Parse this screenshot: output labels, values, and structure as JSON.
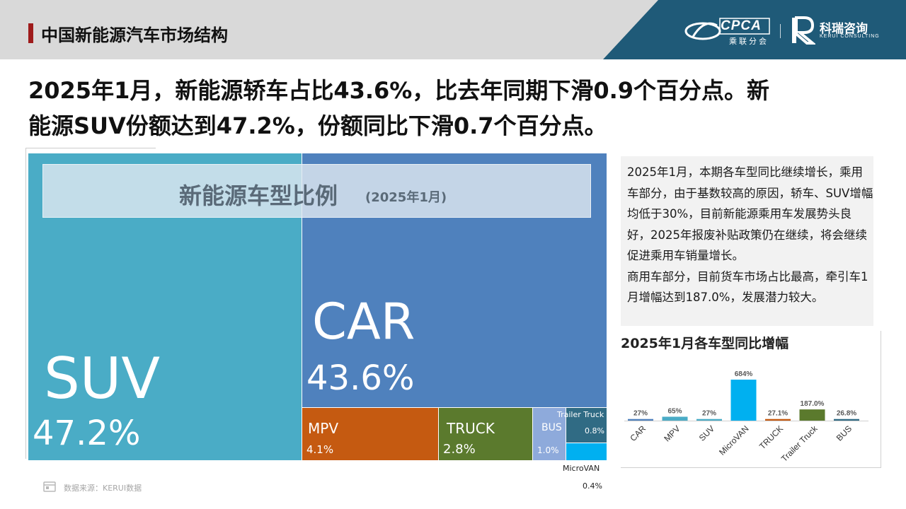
{
  "header": {
    "title": "中国新能源汽车市场结构",
    "logo_cpca_text": "CPCA",
    "logo_cpca_sub": "乘联分会",
    "logo_kerui_cn": "科瑞咨询",
    "logo_kerui_en": "KERUI CONSULTING",
    "accent_color": "#9e1b1b",
    "brand_color": "#1f5a78"
  },
  "headline": {
    "line1": "2025年1月，新能源轿车占比43.6%，比去年同期下滑0.9个百分点。新",
    "line2": "能源SUV份额达到47.2%，份额同比下滑0.7个百分点。"
  },
  "commentary": {
    "paragraph1": "2025年1月，本期各车型同比继续增长，乘用车部分，由于基数较高的原因，轿车、SUV增幅均低于30%，目前新能源乘用车发展势头良好，2025年报废补贴政策仍在继续，将会继续促进乘用车销量增长。",
    "paragraph2": "商用车部分，目前货车市场占比最高，牵引车1月增幅达到187.0%，发展潜力较大。"
  },
  "source": {
    "text": "数据来源：KERUI数据"
  },
  "chart_data": [
    {
      "type": "treemap",
      "title": "新能源车型比例",
      "subtitle": "(2025年1月)",
      "items": [
        {
          "name": "SUV",
          "label": "47.2%",
          "value": 47.2,
          "color": "#4aacc6"
        },
        {
          "name": "CAR",
          "label": "43.6%",
          "value": 43.6,
          "color": "#4f81bd"
        },
        {
          "name": "MPV",
          "label": "4.1%",
          "value": 4.1,
          "color": "#c55a11"
        },
        {
          "name": "TRUCK",
          "label": "2.8%",
          "value": 2.8,
          "color": "#5b7a2d"
        },
        {
          "name": "BUS",
          "label": "1.0%",
          "value": 1.0,
          "color": "#8eaadb"
        },
        {
          "name": "Trailer Truck",
          "label": "0.8%",
          "value": 0.8,
          "color": "#306b84"
        },
        {
          "name": "MicroVAN",
          "label": "0.4%",
          "value": 0.4,
          "color": "#00b0f0"
        }
      ]
    },
    {
      "type": "bar",
      "title": "2025年1月各车型同比增幅",
      "categories": [
        "CAR",
        "MPV",
        "SUV",
        "MicroVAN",
        "TRUCK",
        "Trailer Truck",
        "BUS"
      ],
      "values": [
        27,
        65,
        27,
        684,
        27.1,
        187.0,
        26.8
      ],
      "data_labels": [
        "27%",
        "65%",
        "27%",
        "684%",
        "27.1%",
        "187.0%",
        "26.8%"
      ],
      "colors": [
        "#4f81bd",
        "#4aacc6",
        "#4aacc6",
        "#00b0f0",
        "#c55a11",
        "#5b7a2d",
        "#306b84"
      ],
      "ylim": [
        0,
        684
      ],
      "grid": false,
      "legend": "none"
    }
  ]
}
